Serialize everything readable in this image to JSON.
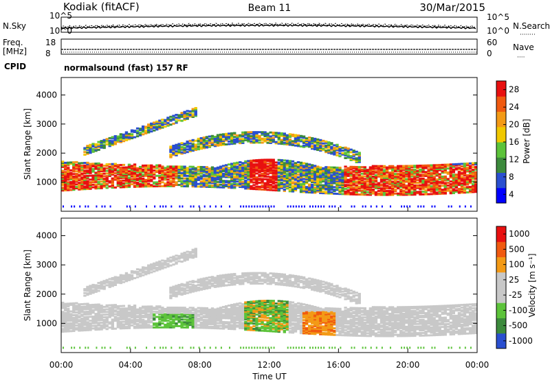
{
  "header": {
    "station": "Kodiak (fitACF)",
    "beam": "Beam 11",
    "date": "30/Mar/2015"
  },
  "side_labels": {
    "nsky": "N.Sky",
    "nsearch": "N.Search",
    "freq": "Freq.",
    "freq_unit": "[MHz]",
    "nave": "Nave",
    "cpid": "CPID",
    "dots": "········",
    "dots_short": "····"
  },
  "noise_axis": {
    "left": [
      "10^5",
      "10^0"
    ],
    "right": [
      "10^5",
      "10^0"
    ]
  },
  "freq_axis": {
    "left": [
      "18",
      "8"
    ],
    "right": [
      "60",
      "0"
    ]
  },
  "cpid_text": "normalsound (fast) 157 RF",
  "colors": {
    "frame": "#000000",
    "power_scale": [
      "#0000ff",
      "#2a4fd0",
      "#3c8a3c",
      "#5cc33a",
      "#f0c800",
      "#f39a16",
      "#f05a10",
      "#e81010"
    ],
    "velocity_scale": [
      "#e81010",
      "#f05a10",
      "#f39a16",
      "#c8c8c8",
      "#c8c8c8",
      "#5cc33a",
      "#3c8a3c",
      "#2a4fd0"
    ]
  },
  "chart_data": [
    {
      "type": "heatmap",
      "title": "",
      "ylabel": "Slant Range [km]",
      "xlabel": "",
      "ylim": [
        0,
        4600
      ],
      "yticks": [
        "1000",
        "2000",
        "3000",
        "4000"
      ],
      "xticks": [
        "00:00",
        "04:00",
        "08:00",
        "12:00",
        "16:00",
        "20:00",
        "00:00"
      ],
      "colorbar": {
        "label": "Power [dB]",
        "ticks": [
          "4",
          "8",
          "12",
          "16",
          "20",
          "24",
          "28"
        ]
      }
    },
    {
      "type": "heatmap",
      "title": "",
      "ylabel": "Slant Range [km]",
      "xlabel": "Time UT",
      "ylim": [
        0,
        4600
      ],
      "yticks": [
        "1000",
        "2000",
        "3000",
        "4000"
      ],
      "xticks": [
        "00:00",
        "04:00",
        "08:00",
        "12:00",
        "16:00",
        "20:00",
        "00:00"
      ],
      "colorbar": {
        "label": "Velocity [m s⁻¹]",
        "ticks": [
          "1000",
          "500",
          "100",
          "25",
          "-25",
          "-100",
          "-500",
          "-1000"
        ]
      }
    }
  ]
}
